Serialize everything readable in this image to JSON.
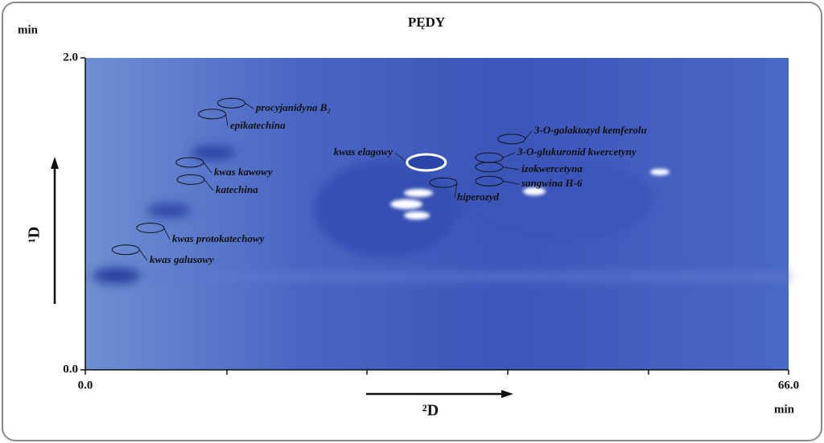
{
  "chart_data": {
    "type": "contour",
    "title": "PĘDY",
    "y_unit": "min",
    "x_unit": "min",
    "ylabel": "¹D",
    "xlabel": "²D",
    "xlim": [
      0,
      66
    ],
    "ylim": [
      0,
      2
    ],
    "xticks": [
      {
        "value": 0,
        "label": "0.0"
      },
      {
        "value": 66,
        "label": "66.0"
      }
    ],
    "yticks": [
      {
        "value": 0,
        "label": "0.0"
      },
      {
        "value": 2,
        "label": "2.0"
      }
    ],
    "peaks": [
      {
        "name": "procyjanidyna B₂",
        "x": 13.7,
        "y": 1.71
      },
      {
        "name": "epikatechina",
        "x": 11.9,
        "y": 1.64
      },
      {
        "name": "3-O-galaktozyd kemferolu",
        "x": 40.0,
        "y": 1.48
      },
      {
        "name": "kwas elagowy",
        "x": 32.0,
        "y": 1.33
      },
      {
        "name": "3-O-glukuronid kwercetyny",
        "x": 37.9,
        "y": 1.36
      },
      {
        "name": "izokwercetyna",
        "x": 37.9,
        "y": 1.3
      },
      {
        "name": "kwas kawowy",
        "x": 9.8,
        "y": 1.33
      },
      {
        "name": "sangwina H-6",
        "x": 37.9,
        "y": 1.21
      },
      {
        "name": "katechina",
        "x": 9.9,
        "y": 1.22
      },
      {
        "name": "hiperozyd",
        "x": 33.6,
        "y": 1.2
      },
      {
        "name": "kwas protokatechowy",
        "x": 6.1,
        "y": 0.91
      },
      {
        "name": "kwas galusowy",
        "x": 3.8,
        "y": 0.77
      }
    ]
  }
}
